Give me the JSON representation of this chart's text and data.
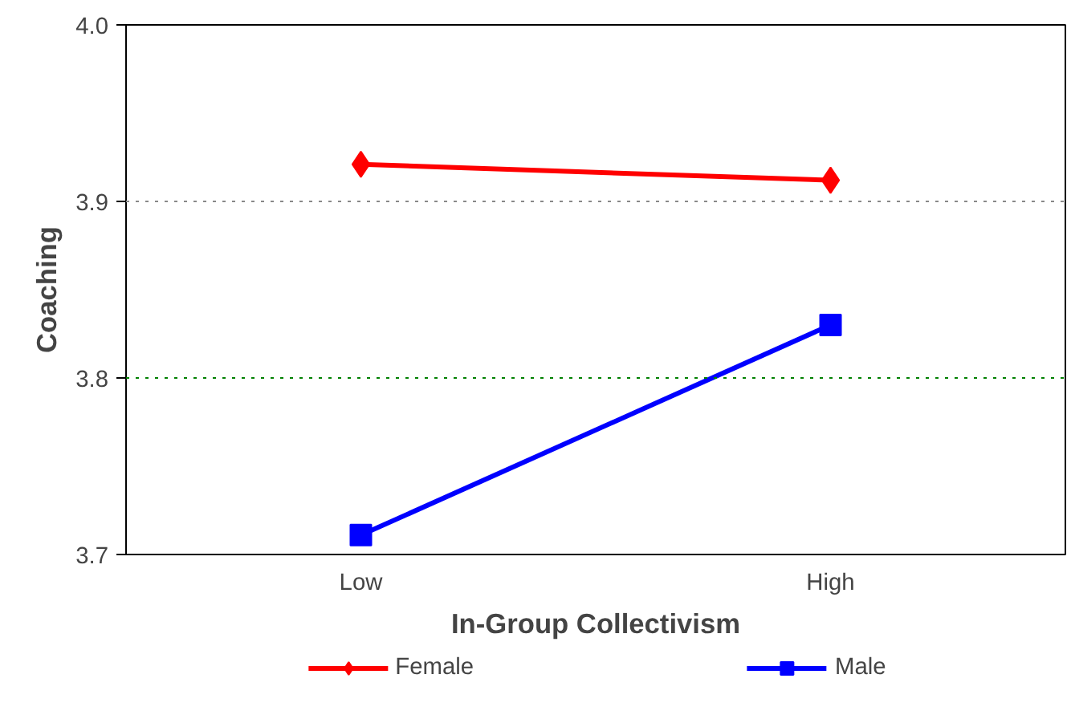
{
  "chart_data": {
    "type": "line",
    "xlabel": "In-Group Collectivism",
    "ylabel": "Coaching",
    "categories": [
      "Low",
      "High"
    ],
    "series": [
      {
        "name": "Female",
        "color": "#ff0000",
        "values": [
          3.921,
          3.912
        ],
        "marker": "diamond"
      },
      {
        "name": "Male",
        "color": "#0000ff",
        "values": [
          3.711,
          3.83
        ],
        "marker": "square"
      }
    ],
    "ylim": [
      3.7,
      4.0
    ],
    "yticks": [
      {
        "value": 3.7,
        "label": "3.7"
      },
      {
        "value": 3.8,
        "label": "3.8"
      },
      {
        "value": 3.9,
        "label": "3.9"
      },
      {
        "value": 4.0,
        "label": "4.0"
      }
    ],
    "ref_lines": [
      {
        "axis": "y",
        "value": 3.9,
        "color": "#888888",
        "line_style": "dotted"
      },
      {
        "axis": "y",
        "value": 3.8,
        "color": "#008000",
        "line_style": "dotted"
      }
    ],
    "legend": "bottom",
    "line_style": "solid"
  }
}
